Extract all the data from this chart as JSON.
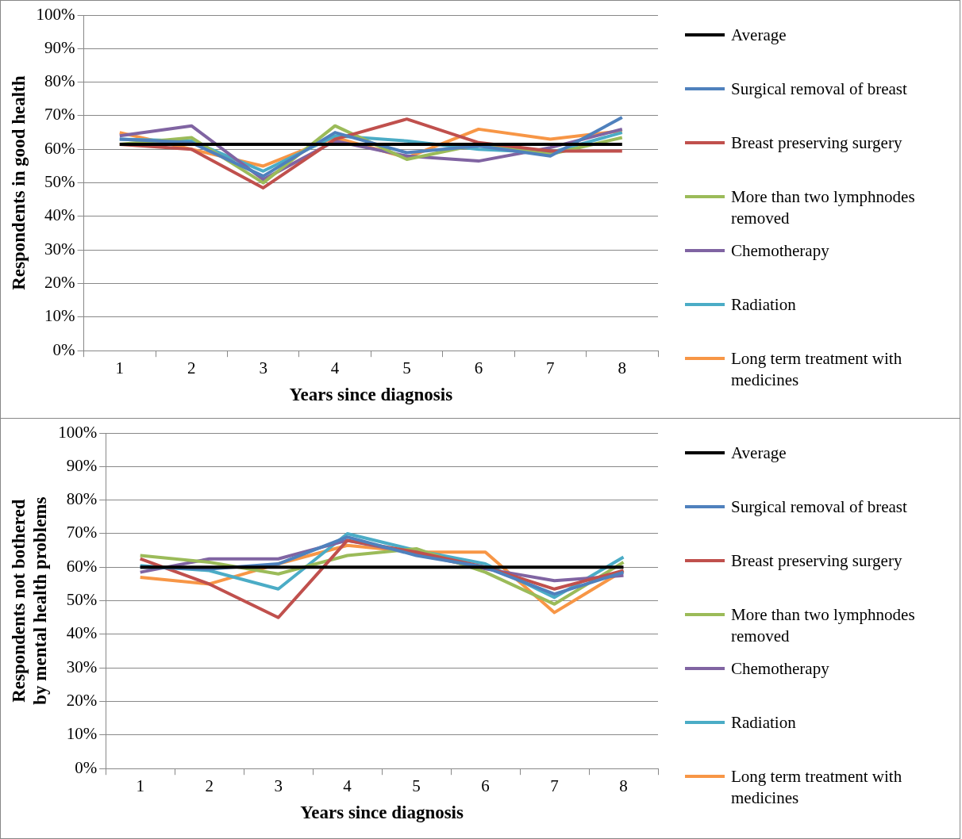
{
  "chart_data": [
    {
      "type": "line",
      "ylabel": "Respondents in good health",
      "xlabel": "Years since diagnosis",
      "categories": [
        "1",
        "2",
        "3",
        "4",
        "5",
        "6",
        "7",
        "8"
      ],
      "ylim": [
        0,
        100
      ],
      "yticks": [
        {
          "value": 0,
          "label": "0%"
        },
        {
          "value": 10,
          "label": "10%"
        },
        {
          "value": 20,
          "label": "20%"
        },
        {
          "value": 30,
          "label": "30%"
        },
        {
          "value": 40,
          "label": "40%"
        },
        {
          "value": 50,
          "label": "50%"
        },
        {
          "value": 60,
          "label": "60%"
        },
        {
          "value": 70,
          "label": "70%"
        },
        {
          "value": 80,
          "label": "80%"
        },
        {
          "value": 90,
          "label": "90%"
        },
        {
          "value": 100,
          "label": "100%"
        }
      ],
      "grid": "y",
      "legend": "right",
      "marker": "none",
      "series": [
        {
          "name": "Average",
          "color": "#000000",
          "values": [
            61.5,
            61.5,
            61.5,
            61.5,
            61.5,
            61.5,
            61.5,
            61.5
          ]
        },
        {
          "name": "Surgical removal of breast",
          "color": "#4f81bd",
          "values": [
            63,
            62,
            52,
            65,
            59,
            61,
            58,
            69.5
          ]
        },
        {
          "name": "Breast preserving surgery",
          "color": "#c0504d",
          "values": [
            61.5,
            60,
            48.5,
            63,
            69,
            62,
            59.5,
            59.5
          ]
        },
        {
          "name": "More than two lymphnodes removed",
          "color": "#9bbb59",
          "values": [
            61.5,
            63.5,
            50,
            67,
            57,
            61.5,
            58.5,
            63.5
          ]
        },
        {
          "name": "Chemotherapy",
          "color": "#8064a2",
          "values": [
            64,
            67,
            51,
            62.5,
            58,
            56.5,
            60.5,
            66
          ]
        },
        {
          "name": "Radiation",
          "color": "#4bacc6",
          "values": [
            63,
            62.5,
            53.5,
            64,
            62.5,
            60,
            59,
            65
          ]
        },
        {
          "name": "Long term treatment with medicines",
          "color": "#f79646",
          "values": [
            65,
            60,
            55,
            63.5,
            57.5,
            66,
            63,
            65.5
          ]
        }
      ]
    },
    {
      "type": "line",
      "ylabel": "Respondents not bothered by mental health problems",
      "xlabel": "Years since diagnosis",
      "categories": [
        "1",
        "2",
        "3",
        "4",
        "5",
        "6",
        "7",
        "8"
      ],
      "ylim": [
        0,
        100
      ],
      "yticks": [
        {
          "value": 0,
          "label": "0%"
        },
        {
          "value": 10,
          "label": "10%"
        },
        {
          "value": 20,
          "label": "20%"
        },
        {
          "value": 30,
          "label": "30%"
        },
        {
          "value": 40,
          "label": "40%"
        },
        {
          "value": 50,
          "label": "50%"
        },
        {
          "value": 60,
          "label": "60%"
        },
        {
          "value": 70,
          "label": "70%"
        },
        {
          "value": 80,
          "label": "80%"
        },
        {
          "value": 90,
          "label": "90%"
        },
        {
          "value": 100,
          "label": "100%"
        }
      ],
      "grid": "y",
      "legend": "right",
      "marker": "none",
      "series": [
        {
          "name": "Average",
          "color": "#000000",
          "values": [
            60,
            60,
            60,
            60,
            60,
            60,
            60,
            60
          ]
        },
        {
          "name": "Surgical removal of breast",
          "color": "#4f81bd",
          "values": [
            60,
            59.5,
            61,
            69,
            63.5,
            60,
            52,
            58.5
          ]
        },
        {
          "name": "Breast preserving surgery",
          "color": "#c0504d",
          "values": [
            62.5,
            55,
            45,
            68,
            64.5,
            60,
            53.5,
            59
          ]
        },
        {
          "name": "More than two lymphnodes removed",
          "color": "#9bbb59",
          "values": [
            63.5,
            61.5,
            58,
            63.5,
            65.5,
            58.5,
            49,
            61.5
          ]
        },
        {
          "name": "Chemotherapy",
          "color": "#8064a2",
          "values": [
            58.5,
            62.5,
            62.5,
            68,
            64,
            59.5,
            56,
            57.5
          ]
        },
        {
          "name": "Radiation",
          "color": "#4bacc6",
          "values": [
            60.5,
            59,
            53.5,
            70,
            65,
            61,
            51,
            63
          ]
        },
        {
          "name": "Long term treatment with medicines",
          "color": "#f79646",
          "values": [
            57,
            55,
            61,
            66.5,
            64.5,
            64.5,
            46.5,
            59
          ]
        }
      ]
    }
  ]
}
